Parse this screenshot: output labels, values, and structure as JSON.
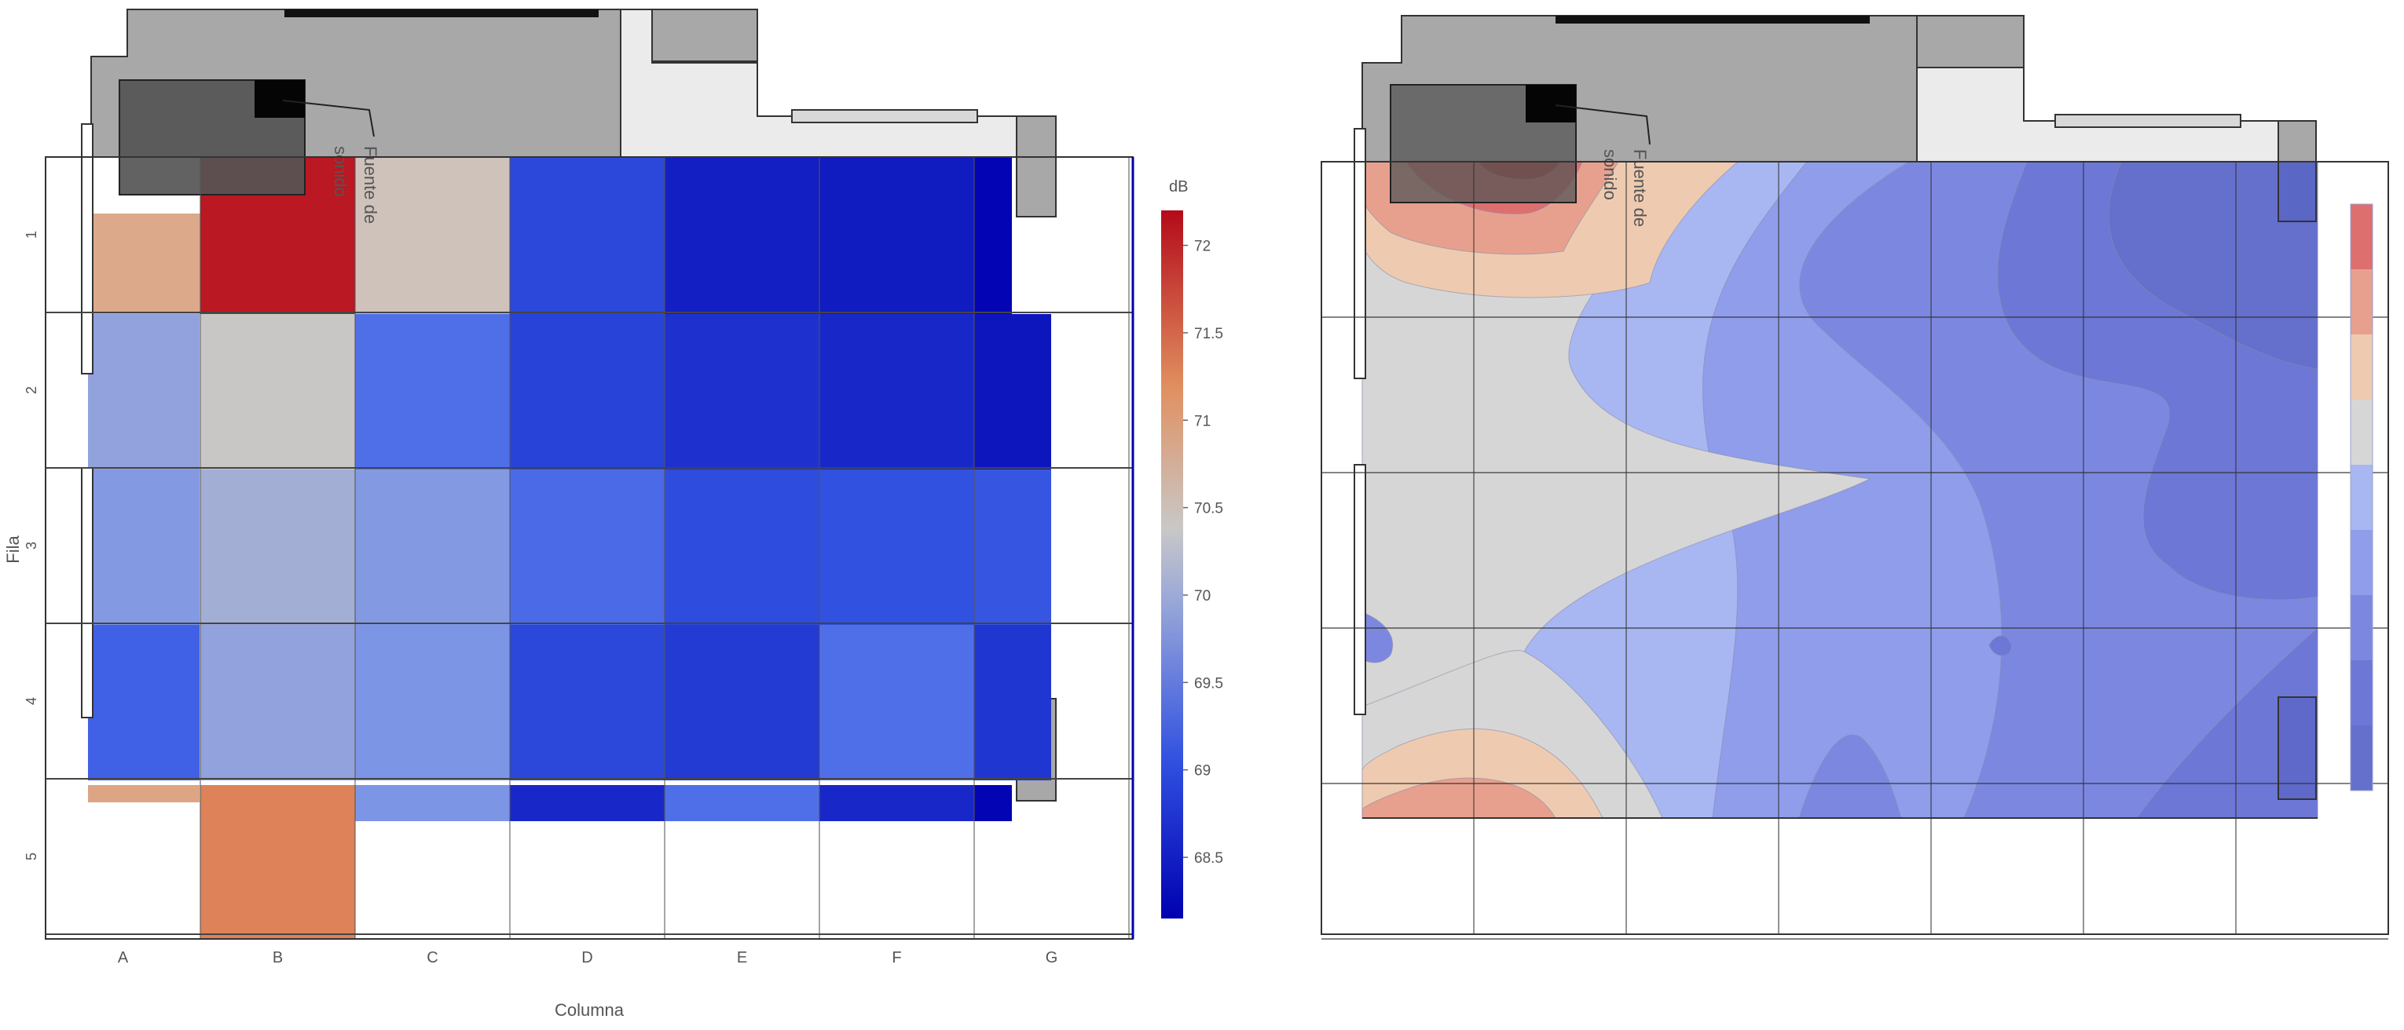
{
  "chart_data": [
    {
      "type": "heatmap",
      "title": "",
      "xlabel": "Columna",
      "ylabel": "Fila",
      "x_categories": [
        "A",
        "B",
        "C",
        "D",
        "E",
        "F",
        "G"
      ],
      "y_categories": [
        "1",
        "2",
        "3",
        "4",
        "5"
      ],
      "values": [
        [
          70.9,
          72.1,
          70.5,
          68.95,
          68.5,
          68.45,
          68.2
        ],
        [
          69.9,
          70.4,
          69.35,
          68.9,
          68.7,
          68.6,
          68.4
        ],
        [
          69.8,
          70.05,
          69.8,
          69.3,
          69.0,
          69.05,
          69.1
        ],
        [
          69.2,
          69.9,
          69.75,
          68.95,
          68.8,
          69.35,
          68.75
        ],
        [
          null,
          71.3,
          null,
          null,
          null,
          null,
          null
        ]
      ],
      "partial_edge_row": [
        70.95,
        71.25,
        69.75,
        68.6,
        69.35,
        68.6,
        68.2
      ],
      "colorbar": {
        "label": "dB",
        "ticks": [
          "72",
          "71.5",
          "71",
          "70.5",
          "70",
          "69.5",
          "69",
          "68.5"
        ],
        "min": 68.15,
        "max": 72.2
      },
      "annotation": {
        "line1": "Fuente de",
        "line2": "sonido"
      }
    },
    {
      "type": "contour",
      "title": "",
      "colorbar": {
        "levels": 9,
        "colors": [
          "#de6f6f",
          "#e8a08e",
          "#eecbb0",
          "#d6d6d6",
          "#a8b7f2",
          "#8f9deb",
          "#7c88e0",
          "#6c77d6",
          "#6570cc"
        ]
      },
      "annotation": {
        "line1": "Fuente de",
        "line2": "sonido"
      }
    }
  ],
  "colors": {
    "low": "#0000b0",
    "mid": "#c8c8c8",
    "high": "#b40a1a",
    "building_fill": "#a8a8a8",
    "corridor_fill": "#ebebeb",
    "source_box": "#555555"
  }
}
